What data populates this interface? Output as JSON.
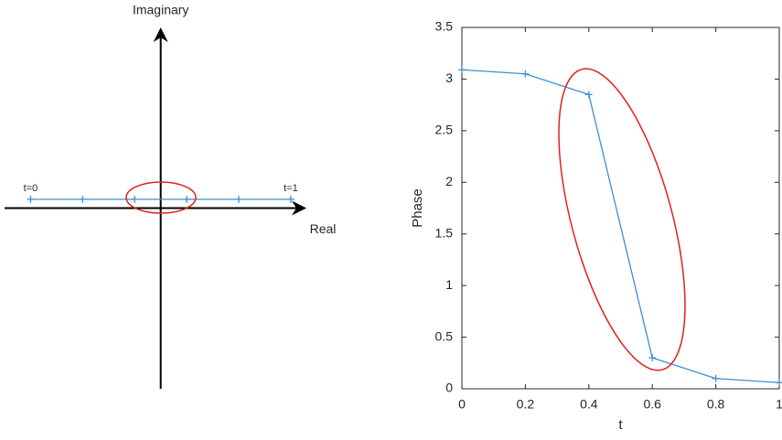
{
  "chart_data": [
    {
      "type": "line",
      "frame": "arrows",
      "x_label": "Real",
      "y_label": "Imaginary",
      "annotations": [
        "t=0",
        "t=1"
      ],
      "x": [
        -2.5,
        -1.5,
        -0.5,
        0.5,
        1.5,
        2.5
      ],
      "values": [
        0.17,
        0.17,
        0.17,
        0.17,
        0.17,
        0.17
      ],
      "color": "#3d8fd4",
      "xlim": [
        -3,
        2.8
      ],
      "ylim": [
        -3.5,
        3.5
      ]
    },
    {
      "type": "line",
      "frame": "box",
      "x_label": "t",
      "y_label": "Phase",
      "x": [
        0,
        0.2,
        0.4,
        0.6,
        0.8,
        1
      ],
      "values": [
        3.09,
        3.05,
        2.85,
        0.3,
        0.1,
        0.06
      ],
      "color": "#3d8fd4",
      "xlim": [
        0,
        1
      ],
      "ylim": [
        0,
        3.5
      ],
      "xticks": [
        0,
        0.2,
        0.4,
        0.6,
        0.8,
        1
      ],
      "yticks": [
        0,
        0.5,
        1,
        1.5,
        2,
        2.5,
        3,
        3.5
      ]
    }
  ]
}
